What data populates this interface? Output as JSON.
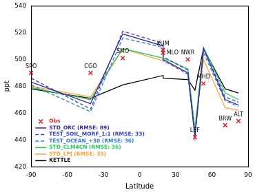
{
  "chart_data": {
    "type": "line",
    "x_label": "Latitude",
    "y_label": "ppt",
    "x": [
      -90,
      -40.7,
      -14,
      19.5,
      19.5,
      40,
      45.9,
      53,
      71,
      82
    ],
    "xlim": [
      -90,
      90
    ],
    "xticks": [
      -90,
      -60,
      -30,
      0,
      30,
      60,
      90
    ],
    "ylim": [
      420,
      540
    ],
    "yticks": [
      420,
      440,
      460,
      480,
      500,
      520,
      540
    ],
    "grid": false,
    "legend": "lower left",
    "series": [
      {
        "name": "Obs",
        "type": "scatter",
        "marker": "x",
        "color": "#dd2222",
        "values": [
          490,
          490,
          501,
          507,
          505,
          500,
          442,
          482,
          451,
          454
        ],
        "point_labels": [
          "SPO",
          "CGO",
          "SMO",
          "KUM",
          "MLO",
          "NWR",
          "LEF",
          "MHD",
          "BRW",
          "ALT"
        ]
      },
      {
        "name": "STD_ORC (RMSE: 89)",
        "type": "line",
        "line_style": "solid",
        "color": "#3a2a9a",
        "values": [
          483,
          467,
          519,
          510,
          500,
          490,
          442,
          508,
          470,
          466
        ]
      },
      {
        "name": "TEST_SOIL_MORF_1:1 (RMSE: 33)",
        "type": "line",
        "line_style": "dashed",
        "color": "#3344cc",
        "values": [
          486,
          463,
          521,
          512,
          502,
          492,
          444,
          508,
          472,
          468
        ]
      },
      {
        "name": "TEST_OCEAN_+30 (RMSE: 36)",
        "type": "line",
        "line_style": "dashed",
        "color": "#2f7fe0",
        "values": [
          481,
          461,
          516,
          509,
          499,
          489,
          443,
          505,
          469,
          465
        ]
      },
      {
        "name": "STD_CLM4CN (RMSE: 36)",
        "type": "line",
        "line_style": "solid",
        "color": "#22cc55",
        "values": [
          479,
          470,
          508,
          501,
          501,
          493,
          448,
          509,
          475,
          470
        ]
      },
      {
        "name": "STD_LPJ (RMSE: 33)",
        "type": "line",
        "line_style": "solid",
        "color": "#ffa030",
        "values": [
          480,
          472,
          508,
          499,
          499,
          490,
          447,
          500,
          464,
          462
        ]
      },
      {
        "name": "KETTLE",
        "type": "line",
        "line_style": "solid",
        "color": "#000000",
        "values": [
          478,
          471,
          481,
          488,
          486,
          485,
          477,
          508,
          478,
          475
        ]
      }
    ]
  }
}
